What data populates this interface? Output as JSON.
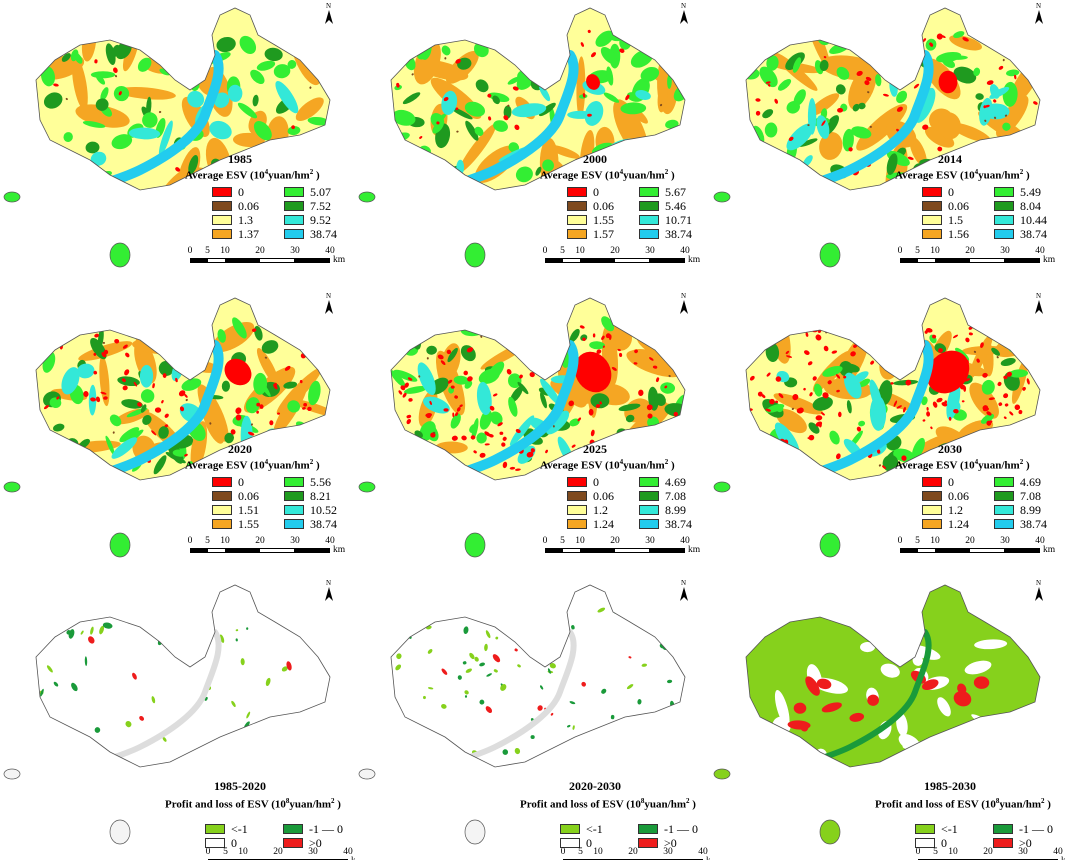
{
  "colors": {
    "esv": [
      "#ff0000",
      "#7f4a1e",
      "#ffff99",
      "#f5a623",
      "#33ee33",
      "#1f9a1f",
      "#33e8d8",
      "#22ccee"
    ],
    "change": [
      "#86d11c",
      "#1a9a3a",
      "#ffffff",
      "#ee1c1c"
    ],
    "outline": "#555555"
  },
  "icons": [
    "north-arrow-icon",
    "scale-bar-icon"
  ],
  "scale_bar": {
    "ticks": [
      "0",
      "5",
      "10",
      "20",
      "30",
      "40"
    ],
    "unit": "km"
  },
  "panels": [
    {
      "title": "1985",
      "kind": "esv",
      "legend_title_pre": "Average ESV (10",
      "legend_title_sup": "4",
      "legend_title_post": "yuan/hm",
      "legend_title_sup2": "2",
      "legend_title_end": " )",
      "values": [
        "0",
        "0.06",
        "1.3",
        "1.37",
        "5.07",
        "7.52",
        "9.52",
        "38.74"
      ],
      "red_level": 0.05
    },
    {
      "title": "2000",
      "kind": "esv",
      "legend_title_pre": "Average ESV (10",
      "legend_title_sup": "4",
      "legend_title_post": "yuan/hm",
      "legend_title_sup2": "2",
      "legend_title_end": " )",
      "values": [
        "0",
        "0.06",
        "1.55",
        "1.57",
        "5.67",
        "5.46",
        "10.71",
        "38.74"
      ],
      "red_level": 0.15
    },
    {
      "title": "2014",
      "kind": "esv",
      "legend_title_pre": "Average ESV (10",
      "legend_title_sup": "4",
      "legend_title_post": "yuan/hm",
      "legend_title_sup2": "2",
      "legend_title_end": " )",
      "values": [
        "0",
        "0.06",
        "1.5",
        "1.56",
        "5.49",
        "8.04",
        "10.44",
        "38.74"
      ],
      "red_level": 0.3
    },
    {
      "title": "2020",
      "kind": "esv",
      "legend_title_pre": "Average ESV (10",
      "legend_title_sup": "4",
      "legend_title_post": "yuan/hm",
      "legend_title_sup2": "2",
      "legend_title_end": " )",
      "values": [
        "0",
        "0.06",
        "1.51",
        "1.55",
        "5.56",
        "8.21",
        "10.52",
        "38.74"
      ],
      "red_level": 0.45
    },
    {
      "title": "2025",
      "kind": "esv",
      "legend_title_pre": "Average ESV (10",
      "legend_title_sup": "4",
      "legend_title_post": "yuan/hm",
      "legend_title_sup2": "2",
      "legend_title_end": " )",
      "values": [
        "0",
        "0.06",
        "1.2",
        "1.24",
        "4.69",
        "7.08",
        "8.99",
        "38.74"
      ],
      "red_level": 0.75
    },
    {
      "title": "2030",
      "kind": "esv",
      "legend_title_pre": "Average ESV (10",
      "legend_title_sup": "4",
      "legend_title_post": "yuan/hm",
      "legend_title_sup2": "2",
      "legend_title_end": " )",
      "values": [
        "0",
        "0.06",
        "1.2",
        "1.24",
        "4.69",
        "7.08",
        "8.99",
        "38.74"
      ],
      "red_level": 0.85
    },
    {
      "title": "1985-2020",
      "kind": "change",
      "legend_title_pre": "Profit and loss of ESV (10",
      "legend_title_sup": "8",
      "legend_title_post": "yuan/hm",
      "legend_title_sup2": "2",
      "legend_title_end": " )",
      "values": [
        "<-1",
        "-1 — 0",
        "0",
        ">0"
      ],
      "fill_level": 0.15
    },
    {
      "title": "2020-2030",
      "kind": "change",
      "legend_title_pre": "Profit and loss of ESV (10",
      "legend_title_sup": "8",
      "legend_title_post": "yuan/hm",
      "legend_title_sup2": "2",
      "legend_title_end": " )",
      "values": [
        "<-1",
        "-1 — 0",
        "0",
        ">0"
      ],
      "fill_level": 0.25
    },
    {
      "title": "1985-2030",
      "kind": "change",
      "legend_title_pre": "Profit and loss of ESV (10",
      "legend_title_sup": "8",
      "legend_title_post": "yuan/hm",
      "legend_title_sup2": "2",
      "legend_title_end": " )",
      "values": [
        "<-1",
        "-1 — 0",
        "0",
        ">0"
      ],
      "fill_level": 0.9
    }
  ]
}
